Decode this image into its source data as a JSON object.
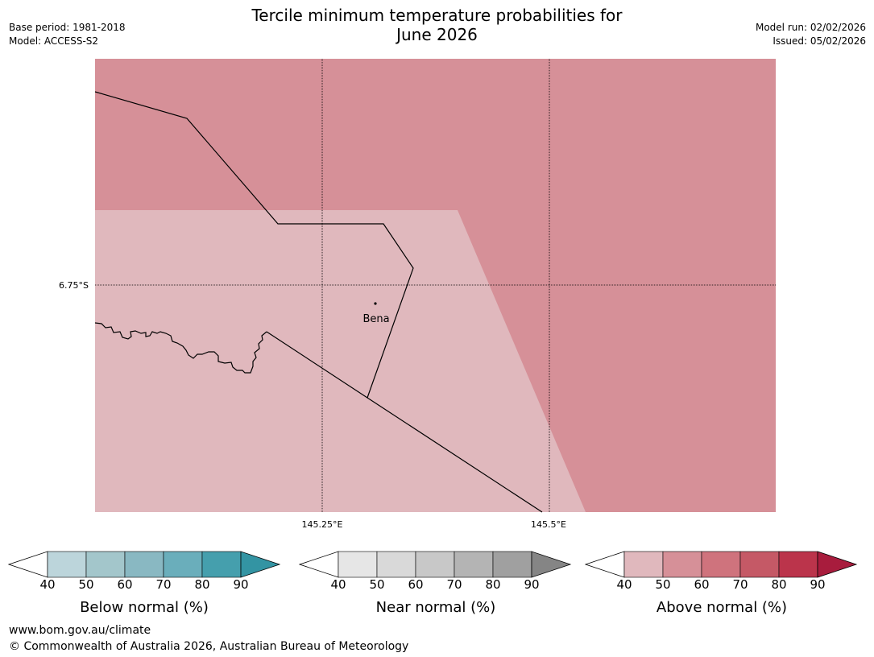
{
  "header": {
    "title_line1": "Tercile minimum temperature probabilities for",
    "title_line2": "June 2026",
    "base_period": "Base period: 1981-2018",
    "model": "Model: ACCESS-S2",
    "model_run": "Model run: 02/02/2026",
    "issued": "Issued: 05/02/2026"
  },
  "map": {
    "lat_label": "6.75°S",
    "lon_labels": [
      "145.25°E",
      "145.5°E"
    ],
    "place": "Bena",
    "colors": {
      "above_50_60": "#d69098",
      "above_40_50": "#e0b8bd",
      "border": "#000000",
      "grid": "#000000"
    }
  },
  "legends": [
    {
      "name": "below",
      "label": "Below normal (%)",
      "ticks": [
        "40",
        "50",
        "60",
        "70",
        "80",
        "90"
      ],
      "colors": [
        "#ffffff",
        "#bcd5db",
        "#a3c6cb",
        "#89b8c2",
        "#6aaebb",
        "#459fad",
        "#3394a3"
      ]
    },
    {
      "name": "near",
      "label": "Near normal (%)",
      "ticks": [
        "40",
        "50",
        "60",
        "70",
        "80",
        "90"
      ],
      "colors": [
        "#ffffff",
        "#e6e6e6",
        "#d9d9d9",
        "#c8c8c8",
        "#b4b4b4",
        "#a0a0a0",
        "#858585"
      ]
    },
    {
      "name": "above",
      "label": "Above normal (%)",
      "ticks": [
        "40",
        "50",
        "60",
        "70",
        "80",
        "90"
      ],
      "colors": [
        "#ffffff",
        "#e0b8bd",
        "#d69098",
        "#cf737d",
        "#c55966",
        "#bb344b",
        "#a81c3d"
      ]
    }
  ],
  "footer": {
    "url": "www.bom.gov.au/climate",
    "copyright": "© Commonwealth of Australia 2026, Australian Bureau of Meteorology"
  }
}
